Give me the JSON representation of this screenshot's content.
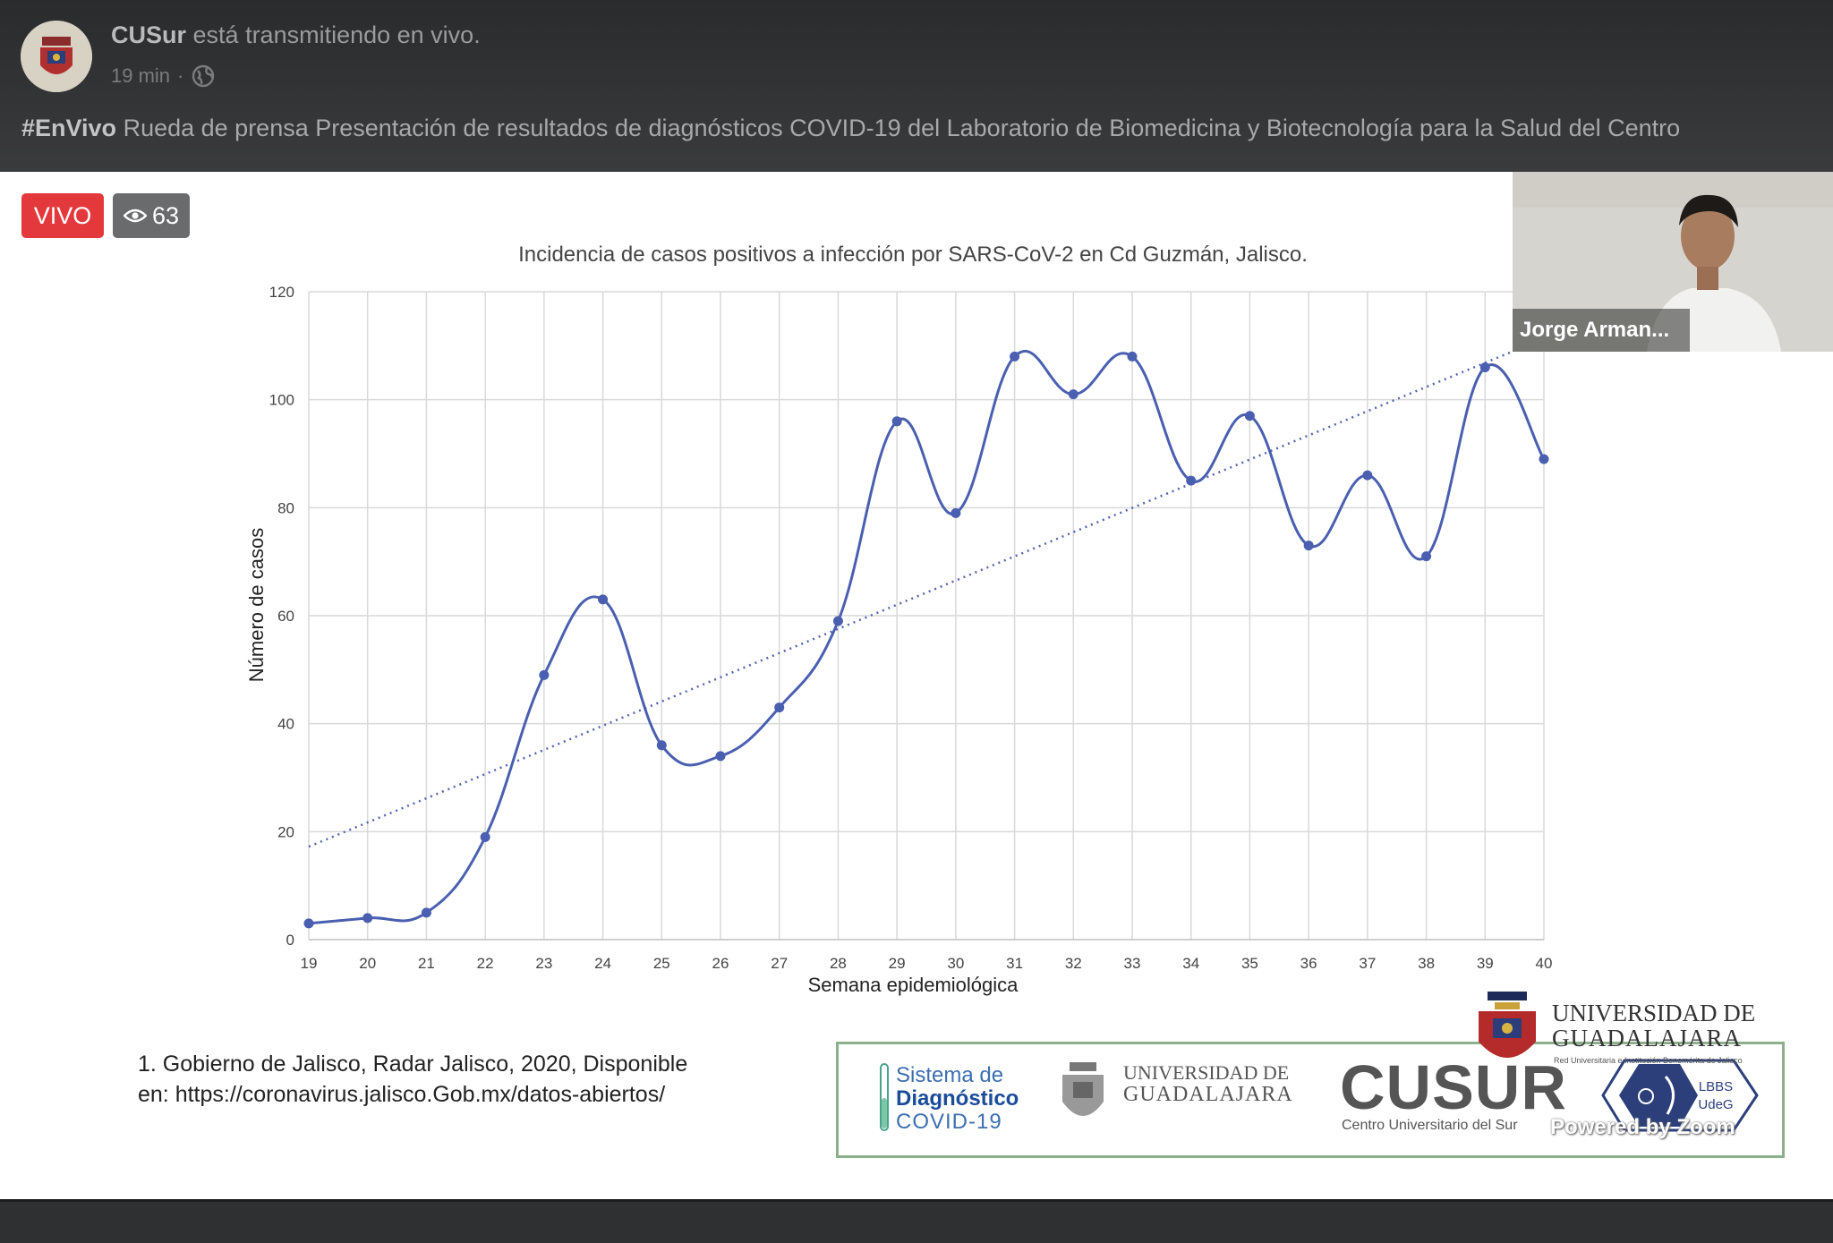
{
  "post": {
    "channel_name": "CUSur",
    "channel_status": "está transmitiendo en vivo.",
    "time_ago": "19 min",
    "separator": "·",
    "hashtag": "#EnVivo",
    "title": "Rueda de prensa Presentación de resultados de diagnósticos COVID-19 del Laboratorio de Biomedicina y Biotecnología para la Salud del Centro"
  },
  "live": {
    "badge": "VIVO",
    "viewer_count": "63"
  },
  "participant": {
    "name": "Jorge Arman..."
  },
  "slide": {
    "citation_line1": "1. Gobierno de Jalisco, Radar Jalisco, 2020, Disponible",
    "citation_line2": "en: https://coronavirus.jalisco.Gob.mx/datos-abiertos/",
    "logo_sistema_line1": "Sistema de",
    "logo_sistema_line2": "Diagnóstico",
    "logo_sistema_line3": "COVID-19",
    "logo_udg_small_line1": "UNIVERSIDAD DE",
    "logo_udg_small_line2": "GUADALAJARA",
    "logo_cusur": "CUSUR",
    "logo_cusur_sub": "Centro Universitario del Sur",
    "logo_lbbs_line1": "LBBS",
    "logo_lbbs_line2": "UdeG",
    "logo_udg_big_line1": "UNIVERSIDAD DE",
    "logo_udg_big_line2": "GUADALAJARA",
    "logo_udg_big_sub": "Red Universitaria e Institución Benemérita de Jalisco"
  },
  "watermark": "Powered by Zoom",
  "colors": {
    "live_red": "#e4393c",
    "series_blue": "#4a5fb0",
    "header_bg": "#2a2b2d"
  },
  "icons": {
    "privacy": "globe-icon",
    "viewers": "eye-icon"
  },
  "chart_data": {
    "type": "line",
    "title": "Incidencia de casos positivos a infección por SARS-CoV-2 en Cd Guzmán, Jalisco.",
    "xlabel": "Semana epidemiológica",
    "ylabel": "Número de casos",
    "x": [
      19,
      20,
      21,
      22,
      23,
      24,
      25,
      26,
      27,
      28,
      29,
      30,
      31,
      32,
      33,
      34,
      35,
      36,
      37,
      38,
      39,
      40
    ],
    "series": [
      {
        "values": [
          3,
          4,
          5,
          19,
          49,
          63,
          36,
          34,
          43,
          59,
          96,
          79,
          108,
          101,
          108,
          85,
          97,
          73,
          86,
          71,
          106,
          89
        ]
      }
    ],
    "trendline": {
      "style": "dotted",
      "linear": true
    },
    "ylim": [
      0,
      120
    ],
    "yticks": [
      0,
      20,
      40,
      60,
      80,
      100,
      120
    ],
    "grid": true,
    "smoothed": true
  }
}
